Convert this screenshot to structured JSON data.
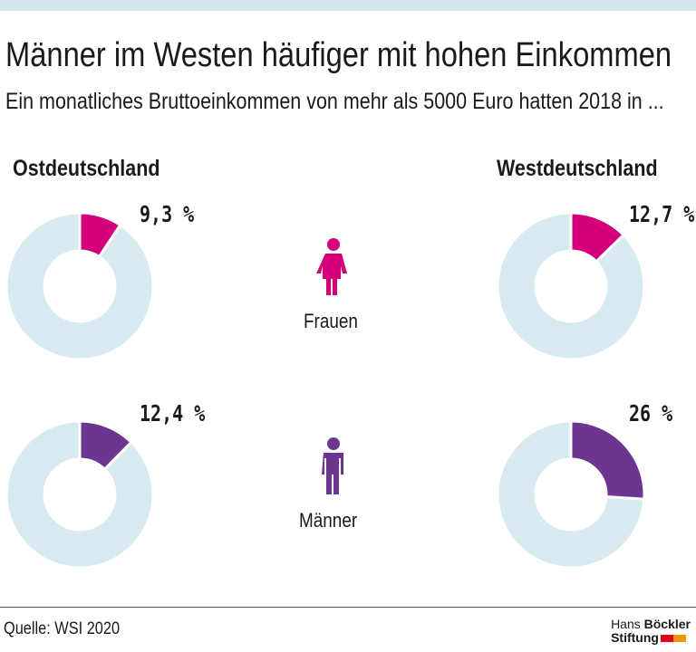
{
  "title": "Männer im Westen häufiger mit hohen Einkommen",
  "subtitle": "Ein monatliches Bruttoeinkommen von mehr als 5000 Euro hatten 2018 in ...",
  "source": "Quelle: WSI 2020",
  "logo": {
    "line1a": "Hans ",
    "line1b": "Böckler",
    "line2": "Stiftung"
  },
  "colors": {
    "frauen": "#d4007a",
    "maenner": "#6c3591",
    "rest": "#d6eaef",
    "topbar": "#d3e8ee",
    "logo_red": "#e3001b",
    "logo_orange": "#f39200"
  },
  "chart_data": {
    "type": "pie",
    "variant": "donut",
    "regions": [
      "Ostdeutschland",
      "Westdeutschland"
    ],
    "groups": [
      {
        "name": "Frauen",
        "icon": "female-icon",
        "values": [
          9.3,
          12.7
        ],
        "labels": [
          "9,3 %",
          "12,7 %"
        ]
      },
      {
        "name": "Männer",
        "icon": "male-icon",
        "values": [
          12.4,
          26
        ],
        "labels": [
          "12,4 %",
          "26 %"
        ]
      }
    ],
    "unit": "%"
  }
}
